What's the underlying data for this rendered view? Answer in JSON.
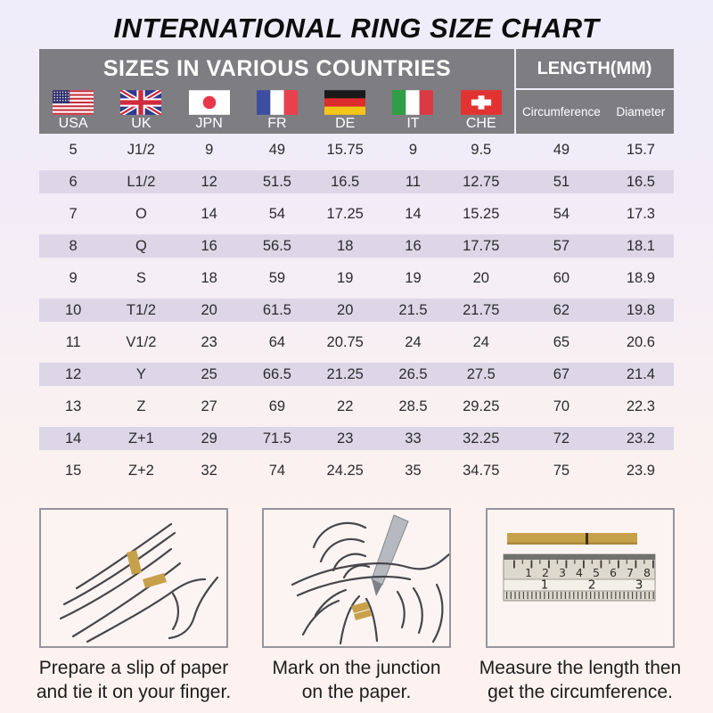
{
  "title": "INTERNATIONAL RING SIZE CHART",
  "chart_data": {
    "type": "table",
    "title": "INTERNATIONAL RING SIZE CHART",
    "column_groups": [
      "SIZES IN VARIOUS COUNTRIES",
      "LENGTH(MM)"
    ],
    "columns": [
      "USA",
      "UK",
      "JPN",
      "FR",
      "DE",
      "IT",
      "CHE",
      "Circumference",
      "Diameter"
    ],
    "rows": [
      [
        "5",
        "J1/2",
        "9",
        "49",
        "15.75",
        "9",
        "9.5",
        "49",
        "15.7"
      ],
      [
        "6",
        "L1/2",
        "12",
        "51.5",
        "16.5",
        "11",
        "12.75",
        "51",
        "16.5"
      ],
      [
        "7",
        "O",
        "14",
        "54",
        "17.25",
        "14",
        "15.25",
        "54",
        "17.3"
      ],
      [
        "8",
        "Q",
        "16",
        "56.5",
        "18",
        "16",
        "17.75",
        "57",
        "18.1"
      ],
      [
        "9",
        "S",
        "18",
        "59",
        "19",
        "19",
        "20",
        "60",
        "18.9"
      ],
      [
        "10",
        "T1/2",
        "20",
        "61.5",
        "20",
        "21.5",
        "21.75",
        "62",
        "19.8"
      ],
      [
        "11",
        "V1/2",
        "23",
        "64",
        "20.75",
        "24",
        "24",
        "65",
        "20.6"
      ],
      [
        "12",
        "Y",
        "25",
        "66.5",
        "21.25",
        "26.5",
        "27.5",
        "67",
        "21.4"
      ],
      [
        "13",
        "Z",
        "27",
        "69",
        "22",
        "28.5",
        "29.25",
        "70",
        "22.3"
      ],
      [
        "14",
        "Z+1",
        "29",
        "71.5",
        "23",
        "33",
        "32.25",
        "72",
        "23.2"
      ],
      [
        "15",
        "Z+2",
        "32",
        "74",
        "24.25",
        "35",
        "34.75",
        "75",
        "23.9"
      ]
    ]
  },
  "flags": [
    {
      "icon": "usa-flag-icon",
      "label": "USA"
    },
    {
      "icon": "uk-flag-icon",
      "label": "UK"
    },
    {
      "icon": "japan-flag-icon",
      "label": "JPN"
    },
    {
      "icon": "france-flag-icon",
      "label": "FR"
    },
    {
      "icon": "germany-flag-icon",
      "label": "DE"
    },
    {
      "icon": "italy-flag-icon",
      "label": "IT"
    },
    {
      "icon": "switzerland-flag-icon",
      "label": "CHE"
    }
  ],
  "guides": [
    {
      "illustration": "hand-with-paper-strip",
      "caption": [
        "Prepare a slip of paper",
        "and tie it on your finger."
      ]
    },
    {
      "illustration": "pen-marking-junction",
      "caption": [
        "Mark on the junction",
        "on the paper."
      ]
    },
    {
      "illustration": "ruler-measuring-strip",
      "caption": [
        "Measure the length then",
        "get the circumference."
      ]
    }
  ],
  "ruler": {
    "cm_numbers": [
      "1",
      "2",
      "3",
      "4",
      "5",
      "6",
      "7",
      "8"
    ],
    "inch_numbers": [
      "1",
      "2",
      "3"
    ]
  },
  "colors": {
    "header_gray": "#7e7d82",
    "stripe_lavender": "#dcd6e7",
    "paper_strip_gold": "#c7a04a",
    "background_top": "#efedfa",
    "background_bottom": "#fdf2ef"
  }
}
